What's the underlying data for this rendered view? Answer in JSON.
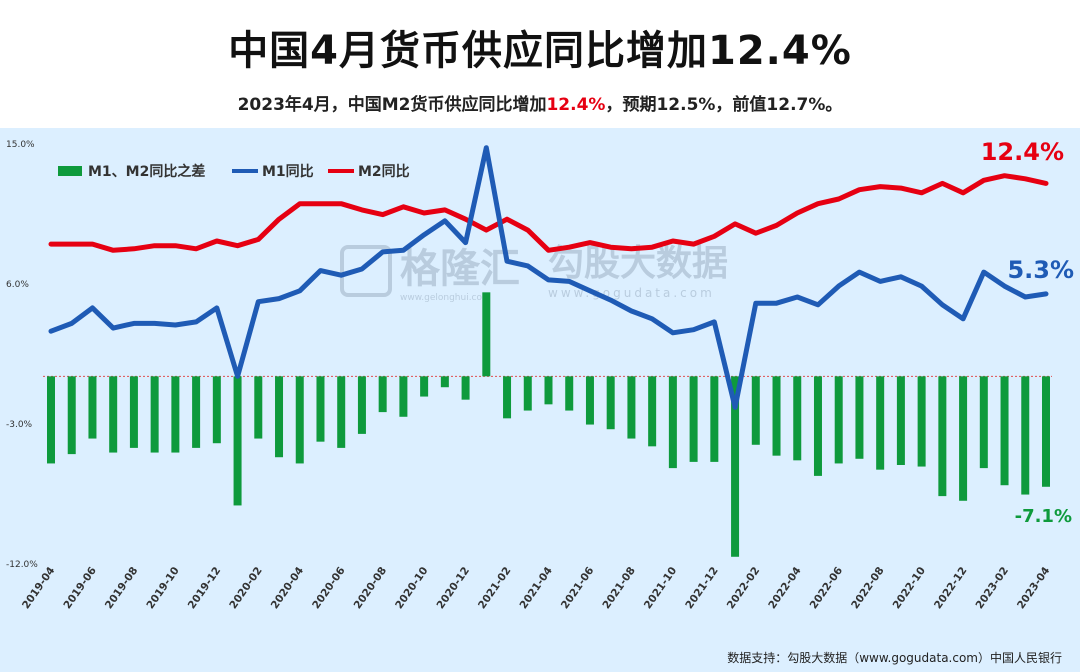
{
  "title": "中国4月货币供应同比增加12.4%",
  "subtitle": {
    "prefix": "2023年4月，中国M2货币供应同比增加",
    "highlight": "12.4%",
    "suffix": "，预期12.5%，前值12.7%。"
  },
  "watermarks": {
    "left_main": "格隆汇",
    "left_url": "www.gelonghui.com",
    "right_main": "勾股大数据",
    "right_url": "www.gogudata.com"
  },
  "source": "数据支持：勾股大数据（www.gogudata.com）中国人民银行",
  "colors": {
    "m1": "#1f5bb5",
    "m2": "#e60012",
    "diff": "#0e9a3c",
    "bg": "#dcefff"
  },
  "chart_data": {
    "type": "bar+line",
    "categories": [
      "2019-04",
      "2019-05",
      "2019-06",
      "2019-07",
      "2019-08",
      "2019-09",
      "2019-10",
      "2019-11",
      "2019-12",
      "2020-01",
      "2020-02",
      "2020-03",
      "2020-04",
      "2020-05",
      "2020-06",
      "2020-07",
      "2020-08",
      "2020-09",
      "2020-10",
      "2020-11",
      "2020-12",
      "2021-01",
      "2021-02",
      "2021-03",
      "2021-04",
      "2021-05",
      "2021-06",
      "2021-07",
      "2021-08",
      "2021-09",
      "2021-10",
      "2021-11",
      "2021-12",
      "2022-01",
      "2022-02",
      "2022-03",
      "2022-04",
      "2022-05",
      "2022-06",
      "2022-07",
      "2022-08",
      "2022-09",
      "2022-10",
      "2022-11",
      "2022-12",
      "2023-01",
      "2023-02",
      "2023-03",
      "2023-04"
    ],
    "tick_labels": [
      "2019-04",
      "2019-06",
      "2019-08",
      "2019-10",
      "2019-12",
      "2020-02",
      "2020-04",
      "2020-06",
      "2020-08",
      "2020-10",
      "2020-12",
      "2021-02",
      "2021-04",
      "2021-06",
      "2021-08",
      "2021-10",
      "2021-12",
      "2022-02",
      "2022-04",
      "2022-06",
      "2022-08",
      "2022-10",
      "2022-12",
      "2023-02",
      "2023-04"
    ],
    "ylim": [
      -12,
      15
    ],
    "yticks": [
      "15.0%",
      "6.0%",
      "-3.0%",
      "-12.0%"
    ],
    "ytick_values": [
      15,
      6,
      -3,
      -12
    ],
    "series": [
      {
        "name": "M1、M2同比之差",
        "kind": "bar",
        "values": [
          -5.6,
          -5.0,
          -4.0,
          -4.9,
          -4.6,
          -4.9,
          -4.9,
          -4.6,
          -4.3,
          -8.3,
          -4.0,
          -5.2,
          -5.6,
          -4.2,
          -4.6,
          -3.7,
          -2.3,
          -2.6,
          -1.3,
          -0.7,
          -1.5,
          5.4,
          -2.7,
          -2.2,
          -1.8,
          -2.2,
          -3.1,
          -3.4,
          -4.0,
          -4.5,
          -5.9,
          -5.5,
          -5.5,
          -11.6,
          -4.4,
          -5.1,
          -5.4,
          -6.4,
          -5.6,
          -5.3,
          -6.0,
          -5.7,
          -5.8,
          -7.7,
          -8.0,
          -5.9,
          -7.0,
          -7.6,
          -7.1
        ]
      },
      {
        "name": "M1同比",
        "kind": "line",
        "values": [
          2.9,
          3.4,
          4.4,
          3.1,
          3.4,
          3.4,
          3.3,
          3.5,
          4.4,
          0.0,
          4.8,
          5.0,
          5.5,
          6.8,
          6.5,
          6.9,
          8.0,
          8.1,
          9.1,
          10.0,
          8.6,
          14.7,
          7.4,
          7.1,
          6.2,
          6.1,
          5.5,
          4.9,
          4.2,
          3.7,
          2.8,
          3.0,
          3.5,
          -2.0,
          4.7,
          4.7,
          5.1,
          4.6,
          5.8,
          6.7,
          6.1,
          6.4,
          5.8,
          4.6,
          3.7,
          6.7,
          5.8,
          5.1,
          5.3
        ]
      },
      {
        "name": "M2同比",
        "kind": "line",
        "values": [
          8.5,
          8.5,
          8.5,
          8.1,
          8.2,
          8.4,
          8.4,
          8.2,
          8.7,
          8.4,
          8.8,
          10.1,
          11.1,
          11.1,
          11.1,
          10.7,
          10.4,
          10.9,
          10.5,
          10.7,
          10.1,
          9.4,
          10.1,
          9.4,
          8.1,
          8.3,
          8.6,
          8.3,
          8.2,
          8.3,
          8.7,
          8.5,
          9.0,
          9.8,
          9.2,
          9.7,
          10.5,
          11.1,
          11.4,
          12.0,
          12.2,
          12.1,
          11.8,
          12.4,
          11.8,
          12.6,
          12.9,
          12.7,
          12.4
        ]
      }
    ],
    "end_labels": {
      "m2": "12.4%",
      "m1": "5.3%",
      "diff": "-7.1%"
    },
    "legend_position": "top-left"
  }
}
